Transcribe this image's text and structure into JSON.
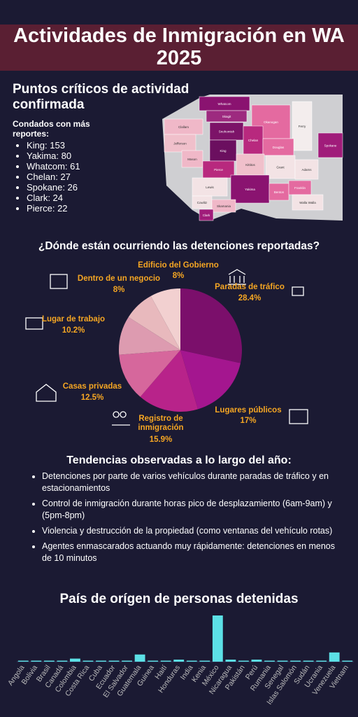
{
  "header": {
    "title": "Actividades de Inmigración en WA 2025"
  },
  "hotspots": {
    "title": "Puntos críticos de actividad confirmada",
    "subtitle": "Condados con más reportes:",
    "items": [
      "King: 153",
      "Yakima: 80",
      "Whatcom: 61",
      "Chelan: 27",
      "Spokane: 26",
      "Clark: 24",
      "Pierce: 22"
    ]
  },
  "map": {
    "counties": [
      {
        "name": "Whatcom",
        "color": "#8a1370"
      },
      {
        "name": "Okanogan",
        "color": "#e46aa0"
      },
      {
        "name": "Ferry",
        "color": "#f3eded"
      },
      {
        "name": "Skagit",
        "color": "#9d2a7f"
      },
      {
        "name": "Clallam",
        "color": "#f0b8c8"
      },
      {
        "name": "Snohomish",
        "color": "#7c1368"
      },
      {
        "name": "Chelan",
        "color": "#b8297e"
      },
      {
        "name": "Douglas",
        "color": "#e46aa0"
      },
      {
        "name": "Jefferson",
        "color": "#f0c0cb"
      },
      {
        "name": "Spokane",
        "color": "#a01c7a"
      },
      {
        "name": "King",
        "color": "#6b0f5f"
      },
      {
        "name": "Kittitos",
        "color": "#f0c0cb"
      },
      {
        "name": "Grant",
        "color": "#f3e3e5"
      },
      {
        "name": "Adams",
        "color": "#f3e3e5"
      },
      {
        "name": "Mason",
        "color": "#f0b8c8"
      },
      {
        "name": "Pierce",
        "color": "#b8297e"
      },
      {
        "name": "Yakima",
        "color": "#8a1370"
      },
      {
        "name": "Benton",
        "color": "#e46aa0"
      },
      {
        "name": "Franklin",
        "color": "#e46aa0"
      },
      {
        "name": "Walla Walla",
        "color": "#f3e3e5"
      },
      {
        "name": "Lewis",
        "color": "#f3e3e5"
      },
      {
        "name": "Cowlitz",
        "color": "#f3e3e5"
      },
      {
        "name": "Skamania",
        "color": "#f0b8c8"
      },
      {
        "name": "Clark",
        "color": "#a01c7a"
      }
    ]
  },
  "chart_data": [
    {
      "type": "pie",
      "title": "¿Dónde están ocurriendo las detenciones reportadas?",
      "categories": [
        "Paradas de tráfico",
        "Lugares públicos",
        "Registro de inmigración",
        "Casas privadas",
        "Lugar de trabajo",
        "Dentro de un negocio",
        "Edificio del Gobierno"
      ],
      "values": [
        28.4,
        17,
        15.9,
        12.5,
        10.2,
        8,
        8
      ],
      "value_labels": [
        "28.4%",
        "17%",
        "15.9%",
        "12.5%",
        "10.2%",
        "8%",
        "8%"
      ],
      "colors": [
        "#7b0f6b",
        "#a4168f",
        "#b8238a",
        "#d6679c",
        "#dd9bb0",
        "#e8b9bd",
        "#f2d0d0"
      ]
    },
    {
      "type": "bar",
      "title": "País de orígen de personas detenidas",
      "categories": [
        "Angola",
        "Bolivia",
        "Brasil",
        "Canadá",
        "Colombia",
        "Costa Rica",
        "Cuba",
        "Ecuador",
        "El Salvador",
        "Guatemala",
        "Guinea",
        "Haití",
        "Honduras",
        "India",
        "Kenia",
        "México",
        "Nicaragua",
        "Pakistán",
        "Perú",
        "Rumania",
        "Senegal",
        "Islas Salomón",
        "Sudán",
        "Ucrania",
        "Venezuela",
        "Vietnam"
      ],
      "values": [
        1,
        1,
        1,
        1,
        3,
        1,
        1,
        1,
        1,
        7,
        1,
        1,
        2,
        1,
        1,
        45,
        2,
        1,
        2,
        1,
        1,
        1,
        1,
        1,
        9,
        1
      ],
      "color": "#5ce0e6"
    }
  ],
  "trends": {
    "title": "Tendencias observadas a lo largo del año:",
    "items": [
      "Detenciones por parte de varios vehículos durante paradas de tráfico y en estacionamientos",
      "Control de inmigración durante horas pico de desplazamiento (6am-9am) y (5pm-8pm)",
      "Violencia y destrucción de la propiedad (como ventanas del vehículo rotas)",
      "Agentes enmascarados actuando muy rápidamente: detenciones en menos de 10 minutos"
    ]
  }
}
